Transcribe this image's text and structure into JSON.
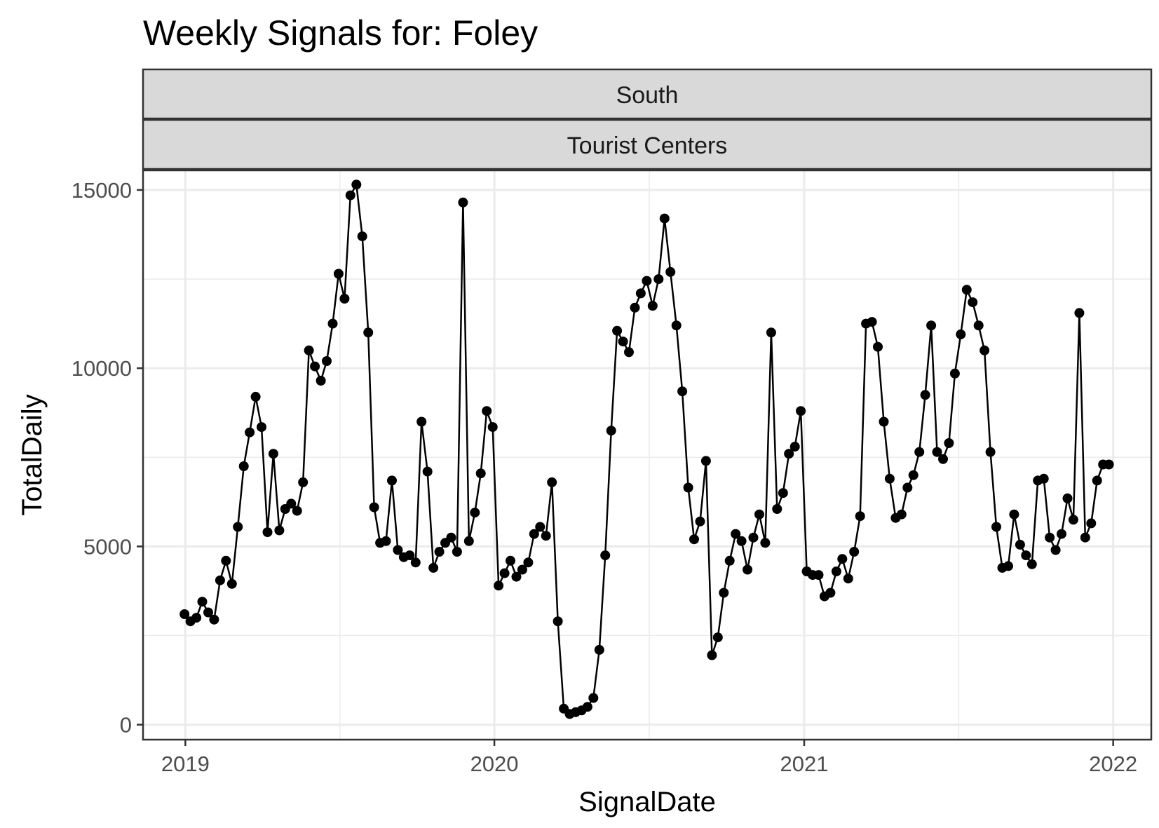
{
  "chart_data": {
    "type": "line",
    "title": "Weekly Signals for: Foley",
    "facet_strips": [
      "South",
      "Tourist Centers"
    ],
    "xlabel": "SignalDate",
    "ylabel": "TotalDaily",
    "x_ticks": [
      "2019",
      "2020",
      "2021",
      "2022"
    ],
    "x_tick_dates": [
      "2019-01-01",
      "2020-01-01",
      "2021-01-01",
      "2022-01-01"
    ],
    "y_ticks": [
      0,
      5000,
      10000,
      15000
    ],
    "y_tick_labels": [
      "0",
      "5000",
      "10000",
      "15000"
    ],
    "xlim": [
      "2018-11-12",
      "2022-02-15"
    ],
    "ylim": [
      -420,
      15550
    ],
    "grid": true,
    "markers": "points",
    "series_color": "#000000",
    "series": [
      {
        "dates": [
          "2018-12-31",
          "2019-01-07",
          "2019-01-14",
          "2019-01-21",
          "2019-01-28",
          "2019-02-04",
          "2019-02-11",
          "2019-02-18",
          "2019-02-25",
          "2019-03-04",
          "2019-03-11",
          "2019-03-18",
          "2019-03-25",
          "2019-04-01",
          "2019-04-08",
          "2019-04-15",
          "2019-04-22",
          "2019-04-29",
          "2019-05-06",
          "2019-05-13",
          "2019-05-20",
          "2019-05-27",
          "2019-06-03",
          "2019-06-10",
          "2019-06-17",
          "2019-06-24",
          "2019-07-01",
          "2019-07-08",
          "2019-07-15",
          "2019-07-22",
          "2019-07-29",
          "2019-08-05",
          "2019-08-12",
          "2019-08-19",
          "2019-08-26",
          "2019-09-02",
          "2019-09-09",
          "2019-09-16",
          "2019-09-23",
          "2019-09-30",
          "2019-10-07",
          "2019-10-14",
          "2019-10-21",
          "2019-10-28",
          "2019-11-04",
          "2019-11-11",
          "2019-11-18",
          "2019-11-25",
          "2019-12-02",
          "2019-12-09",
          "2019-12-16",
          "2019-12-23",
          "2019-12-30",
          "2020-01-06",
          "2020-01-13",
          "2020-01-20",
          "2020-01-27",
          "2020-02-03",
          "2020-02-10",
          "2020-02-17",
          "2020-02-24",
          "2020-03-02",
          "2020-03-09",
          "2020-03-16",
          "2020-03-23",
          "2020-03-30",
          "2020-04-06",
          "2020-04-13",
          "2020-04-20",
          "2020-04-27",
          "2020-05-04",
          "2020-05-11",
          "2020-05-18",
          "2020-05-25",
          "2020-06-01",
          "2020-06-08",
          "2020-06-15",
          "2020-06-22",
          "2020-06-29",
          "2020-07-06",
          "2020-07-13",
          "2020-07-20",
          "2020-07-27",
          "2020-08-03",
          "2020-08-10",
          "2020-08-17",
          "2020-08-24",
          "2020-08-31",
          "2020-09-07",
          "2020-09-14",
          "2020-09-21",
          "2020-09-28",
          "2020-10-05",
          "2020-10-12",
          "2020-10-19",
          "2020-10-26",
          "2020-11-02",
          "2020-11-09",
          "2020-11-16",
          "2020-11-23",
          "2020-11-30",
          "2020-12-07",
          "2020-12-14",
          "2020-12-21",
          "2020-12-28",
          "2021-01-04",
          "2021-01-11",
          "2021-01-18",
          "2021-01-25",
          "2021-02-01",
          "2021-02-08",
          "2021-02-15",
          "2021-02-22",
          "2021-03-01",
          "2021-03-08",
          "2021-03-15",
          "2021-03-22",
          "2021-03-29",
          "2021-04-05",
          "2021-04-12",
          "2021-04-19",
          "2021-04-26",
          "2021-05-03",
          "2021-05-10",
          "2021-05-17",
          "2021-05-24",
          "2021-05-31",
          "2021-06-07",
          "2021-06-14",
          "2021-06-21",
          "2021-06-28",
          "2021-07-05",
          "2021-07-12",
          "2021-07-19",
          "2021-07-26",
          "2021-08-02",
          "2021-08-09",
          "2021-08-16",
          "2021-08-23",
          "2021-08-30",
          "2021-09-06",
          "2021-09-13",
          "2021-09-20",
          "2021-09-27",
          "2021-10-04",
          "2021-10-11",
          "2021-10-18",
          "2021-10-25",
          "2021-11-01",
          "2021-11-08",
          "2021-11-15",
          "2021-11-22",
          "2021-11-29",
          "2021-12-06",
          "2021-12-13",
          "2021-12-20",
          "2021-12-27"
        ],
        "values": [
          3100,
          2900,
          3000,
          3450,
          3150,
          2950,
          4050,
          4600,
          3950,
          5550,
          7250,
          8200,
          9200,
          8350,
          5400,
          7600,
          5450,
          6050,
          6200,
          6000,
          6800,
          10500,
          10050,
          9650,
          10200,
          11250,
          12650,
          11950,
          14850,
          15150,
          13700,
          11000,
          6100,
          5100,
          5150,
          6850,
          4900,
          4700,
          4750,
          4550,
          8500,
          7100,
          4400,
          4850,
          5100,
          5250,
          4850,
          14650,
          5150,
          5950,
          7050,
          8800,
          8350,
          3900,
          4250,
          4600,
          4150,
          4350,
          4550,
          5350,
          5550,
          5300,
          6800,
          2900,
          450,
          300,
          350,
          400,
          500,
          750,
          2100,
          4750,
          8250,
          11050,
          10750,
          10450,
          11700,
          12100,
          12450,
          11750,
          12500,
          14200,
          12700,
          11200,
          9350,
          6650,
          5200,
          5700,
          7400,
          1950,
          2450,
          3700,
          4600,
          5350,
          5150,
          4350,
          5250,
          5900,
          5100,
          11000,
          6050,
          6500,
          7600,
          7800,
          8800,
          4300,
          4200,
          4200,
          3600,
          3700,
          4300,
          4650,
          4100,
          4850,
          5850,
          11250,
          11300,
          10600,
          8500,
          6900,
          5800,
          5900,
          6650,
          7000,
          7650,
          9250,
          11200,
          7650,
          7450,
          7900,
          9850,
          10950,
          12200,
          11850,
          11200,
          10500,
          7650,
          5550,
          4400,
          4450,
          5900,
          5050,
          4750,
          4500,
          6850,
          6900,
          5250,
          4900,
          5350,
          6350,
          5750,
          11550,
          5250,
          5650,
          6850,
          7300,
          7300
        ]
      }
    ]
  }
}
